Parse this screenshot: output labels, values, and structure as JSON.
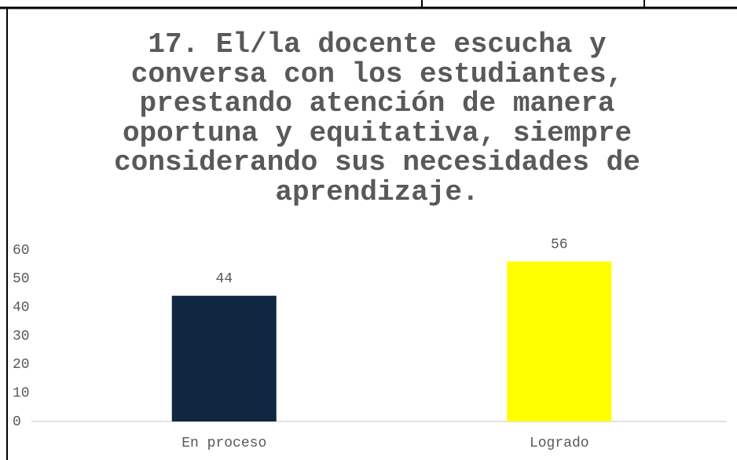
{
  "chart_data": {
    "type": "bar",
    "title": "17. El/la docente escucha y conversa con los estudiantes, prestando atención de manera oportuna y equitativa, siempre considerando sus necesidades de aprendizaje.",
    "categories": [
      "En proceso",
      "Logrado"
    ],
    "values": [
      44,
      56
    ],
    "colors": [
      "#0f2740",
      "#ffff00"
    ],
    "ylim": [
      0,
      60
    ],
    "yticks": [
      0,
      10,
      20,
      30,
      40,
      50,
      60
    ],
    "grid": false
  }
}
